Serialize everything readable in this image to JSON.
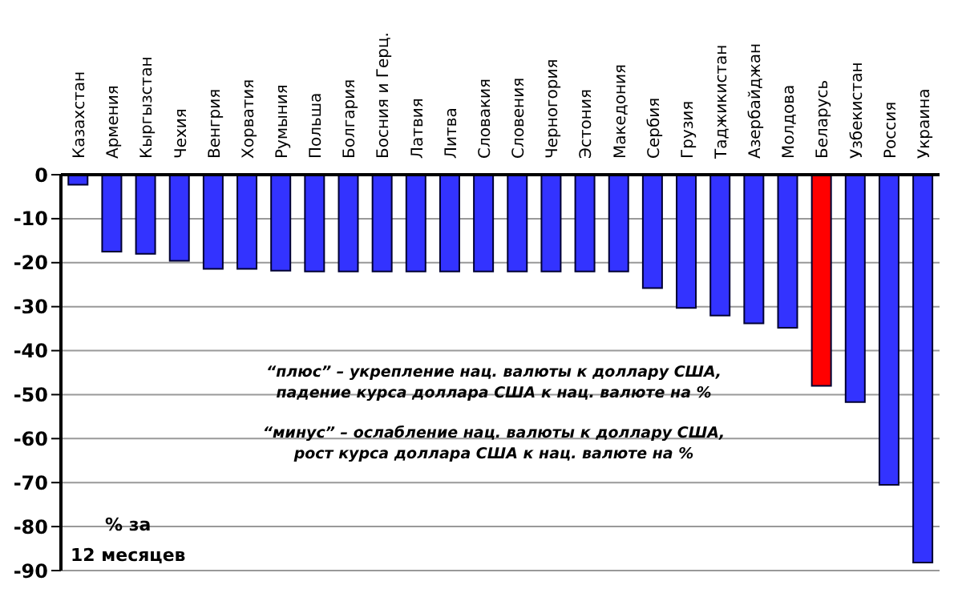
{
  "chart_data": {
    "type": "bar",
    "ylabel": "% за\n12 месяцев",
    "categories": [
      "Казахстан",
      "Армения",
      "Кыргызстан",
      "Чехия",
      "Венгрия",
      "Хорватия",
      "Румыния",
      "Польша",
      "Болгария",
      "Босния  и Герц.",
      "Латвия",
      "Литва",
      "Словакия",
      "Словения",
      "Черногория",
      "Эстония",
      "Македония",
      "Сербия",
      "Грузия",
      "Таджикистан",
      "Азербайджан",
      "Молдова",
      "Беларусь",
      "Узбекистан",
      "Россия",
      "Украина"
    ],
    "values": [
      -2.3,
      -17.5,
      -18,
      -19.6,
      -21.4,
      -21.4,
      -21.8,
      -22,
      -22,
      -22,
      -22,
      -22,
      -22,
      -22,
      -22,
      -22,
      -22,
      -25.8,
      -30.3,
      -32,
      -33.8,
      -34.8,
      -48,
      -51.7,
      -70.5,
      -88.2
    ],
    "colors": [
      "#3333ff",
      "#3333ff",
      "#3333ff",
      "#3333ff",
      "#3333ff",
      "#3333ff",
      "#3333ff",
      "#3333ff",
      "#3333ff",
      "#3333ff",
      "#3333ff",
      "#3333ff",
      "#3333ff",
      "#3333ff",
      "#3333ff",
      "#3333ff",
      "#3333ff",
      "#3333ff",
      "#3333ff",
      "#3333ff",
      "#3333ff",
      "#3333ff",
      "#ff0000",
      "#3333ff",
      "#3333ff",
      "#3333ff"
    ],
    "ylim": [
      -90,
      0
    ],
    "yticks": [
      0,
      -10,
      -20,
      -30,
      -40,
      -50,
      -60,
      -70,
      -80,
      -90
    ],
    "grid": "y",
    "legend": false,
    "annotations": [
      "“плюс” – укрепление нац. валюты к доллару США,\nпадение курса доллара США к нац. валюте на %",
      "“минус” – ослабление нац. валюты к доллару США,\nрост курса доллара США к нац. валюте на %"
    ]
  }
}
